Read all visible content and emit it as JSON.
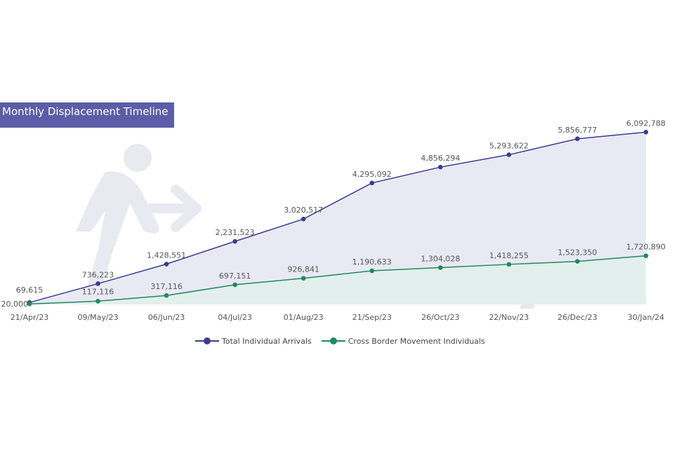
{
  "chart_data": {
    "type": "line",
    "title": "Monthly Displacement Timeline",
    "categories": [
      "21/Apr/23",
      "09/May/23",
      "06/Jun/23",
      "04/Jul/23",
      "01/Aug/23",
      "21/Sep/23",
      "26/Oct/23",
      "22/Nov/23",
      "26/Dec/23",
      "30/Jan/24"
    ],
    "series": [
      {
        "name": "Total Individual Arrivals",
        "values": [
          69615,
          736223,
          1428551,
          2231523,
          3020517,
          4295092,
          4856294,
          5293622,
          5856777,
          6092788
        ],
        "labels": [
          "69,615",
          "736,223",
          "1,428,551",
          "2,231,523",
          "3,020,517",
          "4,295,092",
          "4,856,294",
          "5,293,622",
          "5,856,777",
          "6,092,788"
        ],
        "color": "#3a3d8f",
        "fill": "#e9e9f4"
      },
      {
        "name": "Cross Border Movement Individuals",
        "values": [
          20000,
          117116,
          317116,
          697151,
          926841,
          1190633,
          1304028,
          1418255,
          1523350,
          1720890
        ],
        "labels": [
          "20,000",
          "117,116",
          "317,116",
          "697,151",
          "926,841",
          "1,190,633",
          "1,304,028",
          "1,418,255",
          "1,523,350",
          "1,720,890"
        ],
        "color": "#1f8a5c",
        "fill": "#e3efec"
      }
    ],
    "xlabel": "",
    "ylabel": "",
    "ylim": [
      0,
      6200000
    ],
    "grid": false,
    "legend_position": "bottom"
  }
}
